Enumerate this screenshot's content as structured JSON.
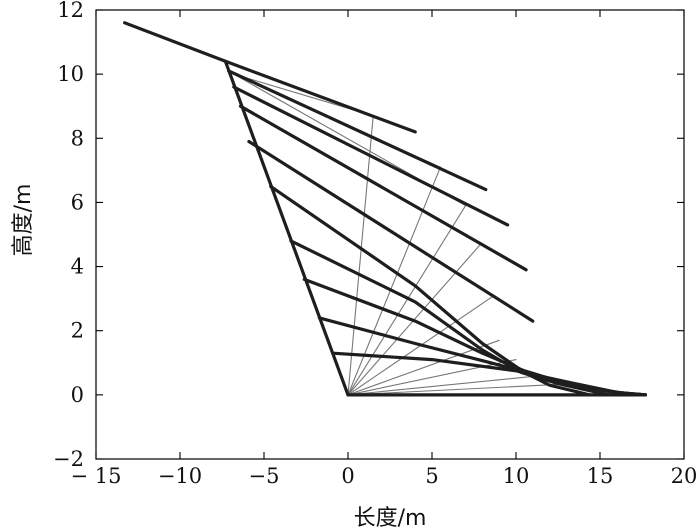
{
  "chart_data": {
    "type": "line",
    "title": "",
    "xlabel": "长度/m",
    "ylabel": "高度/m",
    "xlim": [
      -15,
      20
    ],
    "ylim": [
      -2,
      12
    ],
    "xticks": [
      -15,
      -10,
      -5,
      0,
      5,
      10,
      15,
      20
    ],
    "yticks": [
      -2,
      0,
      2,
      4,
      6,
      8,
      10,
      12
    ],
    "xtick_labels": [
      "− 15",
      "−10",
      "−5",
      "0",
      "5",
      "10",
      "15",
      "20"
    ],
    "ytick_labels": [
      "−2",
      "0",
      "2",
      "4",
      "6",
      "8",
      "10",
      "12"
    ],
    "grid": false,
    "legend": "none",
    "colors": {
      "thick": "#1e1e1e",
      "thin": "#777777"
    },
    "series": [
      {
        "style": "thick",
        "x": [
          -13.3,
          -7.3
        ],
        "y": [
          11.6,
          10.4
        ]
      },
      {
        "style": "thick",
        "x": [
          -7.3,
          0
        ],
        "y": [
          10.4,
          0
        ]
      },
      {
        "style": "thick",
        "x": [
          0,
          17.7
        ],
        "y": [
          0,
          0
        ]
      },
      {
        "style": "thick",
        "x": [
          -7.3,
          4
        ],
        "y": [
          10.4,
          8.2
        ]
      },
      {
        "style": "thick",
        "x": [
          -7.1,
          8.2
        ],
        "y": [
          10.1,
          6.4
        ]
      },
      {
        "style": "thick",
        "x": [
          -6.8,
          9.5
        ],
        "y": [
          9.6,
          5.3
        ]
      },
      {
        "style": "thick",
        "x": [
          -6.4,
          10.6
        ],
        "y": [
          9.0,
          3.9
        ]
      },
      {
        "style": "thick",
        "x": [
          -5.9,
          11
        ],
        "y": [
          7.9,
          2.3
        ]
      },
      {
        "style": "thick",
        "x": [
          -4.6,
          4,
          8,
          10.5,
          12,
          14.4
        ],
        "y": [
          6.5,
          3.4,
          1.6,
          0.7,
          0.3,
          0
        ]
      },
      {
        "style": "thick",
        "x": [
          -3.4,
          4,
          8,
          10.3,
          12.5,
          15.5
        ],
        "y": [
          4.8,
          2.9,
          1.4,
          0.7,
          0.35,
          0
        ]
      },
      {
        "style": "thick",
        "x": [
          -2.6,
          4,
          8,
          10.5,
          13,
          15.5,
          17.7
        ],
        "y": [
          3.6,
          2.3,
          1.3,
          0.75,
          0.35,
          0.1,
          0
        ]
      },
      {
        "style": "thick",
        "x": [
          -1.7,
          4,
          8.5,
          12,
          14.5,
          16.5,
          17.7
        ],
        "y": [
          2.4,
          1.6,
          1.0,
          0.5,
          0.2,
          0.05,
          0
        ]
      },
      {
        "style": "thick",
        "x": [
          -0.9,
          5,
          10,
          13.5,
          16,
          17.7
        ],
        "y": [
          1.3,
          1.1,
          0.75,
          0.35,
          0.08,
          0
        ]
      },
      {
        "style": "thin",
        "x": [
          0,
          1.5
        ],
        "y": [
          0,
          8.7
        ]
      },
      {
        "style": "thin",
        "x": [
          0,
          5.5
        ],
        "y": [
          0,
          7.1
        ]
      },
      {
        "style": "thin",
        "x": [
          0,
          7
        ],
        "y": [
          0,
          5.9
        ]
      },
      {
        "style": "thin",
        "x": [
          0,
          7.9
        ],
        "y": [
          0,
          4.7
        ]
      },
      {
        "style": "thin",
        "x": [
          0,
          8.7
        ],
        "y": [
          0,
          3.1
        ]
      },
      {
        "style": "thin",
        "x": [
          0,
          9
        ],
        "y": [
          0,
          1.7
        ]
      },
      {
        "style": "thin",
        "x": [
          0,
          10
        ],
        "y": [
          0,
          1.1
        ]
      },
      {
        "style": "thin",
        "x": [
          0,
          11.5
        ],
        "y": [
          0,
          0.6
        ]
      },
      {
        "style": "thin",
        "x": [
          0,
          13.5
        ],
        "y": [
          0,
          0.35
        ]
      },
      {
        "style": "thin",
        "x": [
          -6.8,
          1.5
        ],
        "y": [
          10.0,
          8.7
        ]
      },
      {
        "style": "thin",
        "x": [
          -6.8,
          5.5
        ],
        "y": [
          10.0,
          7.1
        ]
      },
      {
        "style": "thin",
        "x": [
          -6.8,
          7
        ],
        "y": [
          10.0,
          5.9
        ]
      }
    ]
  }
}
